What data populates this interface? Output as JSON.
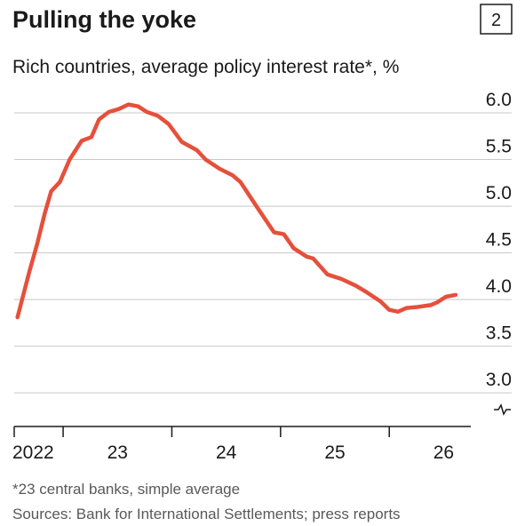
{
  "chart_data": {
    "type": "line",
    "title": "Pulling the yoke",
    "chart_number": "2",
    "subtitle": "Rich countries, average policy interest rate*, %",
    "footnote": "*23 central banks, simple average",
    "source": "Sources: Bank for International Settlements; press reports",
    "x": [
      2022.58,
      2022.69,
      2022.76,
      2022.83,
      2022.89,
      2022.97,
      2023.06,
      2023.17,
      2023.26,
      2023.33,
      2023.42,
      2023.51,
      2023.6,
      2023.69,
      2023.77,
      2023.87,
      2023.97,
      2024.09,
      2024.23,
      2024.31,
      2024.44,
      2024.56,
      2024.63,
      2024.79,
      2024.94,
      2025.03,
      2025.12,
      2025.24,
      2025.3,
      2025.43,
      2025.56,
      2025.69,
      2025.79,
      2025.92,
      2026.0,
      2026.08,
      2026.16,
      2026.26,
      2026.38,
      2026.44,
      2026.52,
      2026.61
    ],
    "series": [
      {
        "color": "#e5503c",
        "values": [
          3.81,
          4.3,
          4.59,
          4.92,
          5.16,
          5.26,
          5.5,
          5.7,
          5.74,
          5.93,
          6.01,
          6.04,
          6.09,
          6.07,
          6.01,
          5.97,
          5.88,
          5.69,
          5.6,
          5.5,
          5.4,
          5.33,
          5.26,
          4.98,
          4.72,
          4.7,
          4.55,
          4.46,
          4.44,
          4.27,
          4.22,
          4.15,
          4.08,
          3.98,
          3.89,
          3.87,
          3.91,
          3.92,
          3.94,
          3.97,
          4.03,
          4.05
        ]
      }
    ],
    "xlim": [
      2022.55,
      2026.75
    ],
    "xticks": [
      2023,
      2024,
      2025,
      2026
    ],
    "xtick_labels": [
      {
        "value": 2022.5,
        "label": "2022"
      },
      {
        "value": 2023.5,
        "label": "23"
      },
      {
        "value": 2024.5,
        "label": "24"
      },
      {
        "value": 2025.5,
        "label": "25"
      },
      {
        "value": 2026.5,
        "label": "26"
      }
    ],
    "ylim": [
      2.64,
      6.2
    ],
    "yticks": [
      {
        "value": 3,
        "label": "3.0"
      },
      3.5,
      {
        "value": 4,
        "label": "4.0"
      },
      4.5,
      {
        "value": 5,
        "label": "5.0"
      },
      5.5,
      {
        "value": 6,
        "label": "6.0"
      }
    ],
    "grid": true
  }
}
